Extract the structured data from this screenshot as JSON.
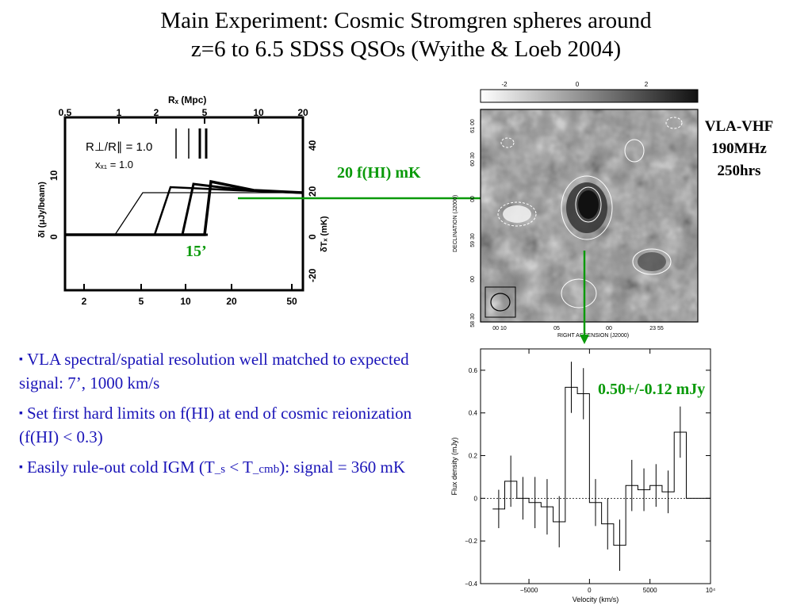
{
  "title": {
    "line1": "Main Experiment: Cosmic Stromgren spheres around",
    "line2": "z=6 to 6.5 SDSS QSOs (Wyithe & Loeb 2004)"
  },
  "bullets": [
    {
      "text": "VLA spectral/spatial resolution well matched to expected signal: 7’, 1000 km/s"
    },
    {
      "text": "Set first hard limits on f(HI) at end of cosmic reionization (f(HI) < 0.3)"
    },
    {
      "pre": "Easily rule-out cold IGM (T",
      "sub1": "_s",
      "mid": " < T",
      "sub2": "_cmb",
      "post": "): signal = 360 mK"
    }
  ],
  "annotations": {
    "signal": "20 f(HI) mK",
    "size": "15’",
    "flux": "0.50+/-0.12 mJy",
    "telescope": [
      "VLA-VHF",
      "190MHz",
      "250hrs"
    ]
  },
  "model_plot": {
    "top_axis_label": "Rₓ (Mpc)",
    "top_ticks": [
      "0.5",
      "1",
      "2",
      "5",
      "10",
      "20"
    ],
    "bottom_ticks": [
      "2",
      "5",
      "10",
      "20",
      "50"
    ],
    "left_axis_label": "δI (μJy/beam)",
    "left_ticks": [
      "10",
      "0"
    ],
    "right_axis_label": "δTₓ (mK)",
    "right_ticks": [
      "40",
      "20",
      "0",
      "-20"
    ],
    "legend_line1": "R⊥/R∥ = 1.0",
    "legend_line2": "xₓ₁ = 1.0"
  },
  "map": {
    "colorbar_ticks": [
      "-2",
      "0",
      "2"
    ],
    "ylabel": "DECLINATION (J2000)",
    "xlabel": "RIGHT ASCENSION (J2000)",
    "yticks": [
      "61 00",
      "60 30",
      "00",
      "59 30",
      "00",
      "58 30"
    ],
    "xticks": [
      "00 10",
      "05",
      "00",
      "23 55"
    ]
  },
  "chart_data": {
    "type": "line",
    "xlabel": "Velocity (km/s)",
    "ylabel": "Flux density (mJy)",
    "xlim": [
      -9000,
      10000
    ],
    "ylim": [
      -0.4,
      0.7
    ],
    "xticks": [
      "−5000",
      "0",
      "5000",
      "10⁴"
    ],
    "yticks": [
      "0.6",
      "0.4",
      "0.2",
      "0",
      "−0.2",
      "−0.4"
    ],
    "series": [
      {
        "x": [
          -7500,
          -6500,
          -5500,
          -4500,
          -3500,
          -2500,
          -1500,
          -500,
          500,
          1500,
          2500,
          3500,
          4500,
          5500,
          6500,
          7500,
          8500,
          9500
        ],
        "values": [
          -0.05,
          0.08,
          0.0,
          -0.02,
          -0.04,
          -0.11,
          0.52,
          0.49,
          -0.02,
          -0.12,
          -0.22,
          0.06,
          0.04,
          0.06,
          0.03,
          0.31,
          0.0,
          0.0
        ],
        "errors": [
          0.09,
          0.12,
          0.1,
          0.12,
          0.13,
          0.12,
          0.12,
          0.12,
          0.11,
          0.12,
          0.12,
          0.12,
          0.1,
          0.1,
          0.1,
          0.12,
          0,
          0
        ]
      }
    ]
  }
}
